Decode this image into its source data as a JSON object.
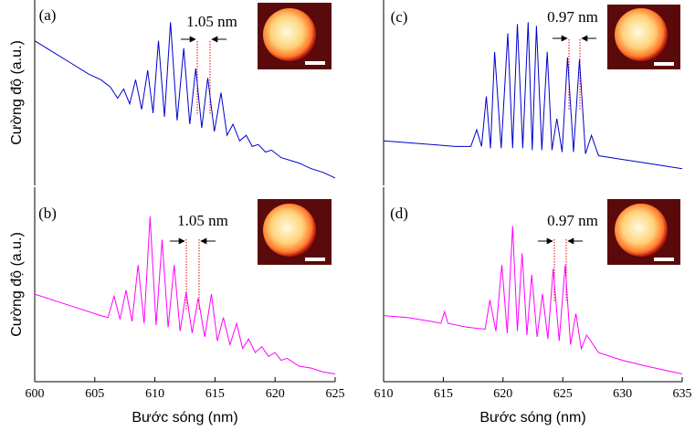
{
  "chart_data": [
    {
      "type": "line",
      "label": "(a)",
      "annotation": "1.05 nm",
      "y_label": "Cường độ (a.u.)",
      "color": "#0000cc",
      "xlim": [
        600,
        625
      ],
      "ylim": [
        0,
        1
      ],
      "x": [
        600,
        601.5,
        603,
        604.5,
        605.5,
        606.3,
        606.9,
        607.4,
        607.9,
        608.4,
        608.9,
        609.4,
        609.85,
        610.3,
        610.8,
        611.3,
        611.85,
        612.4,
        612.9,
        613.4,
        613.9,
        614.4,
        614.95,
        615.5,
        616.0,
        616.5,
        617.05,
        617.6,
        618.1,
        618.6,
        619.2,
        619.7,
        620.5,
        622,
        623,
        624,
        625
      ],
      "values": [
        0.78,
        0.72,
        0.66,
        0.6,
        0.57,
        0.53,
        0.47,
        0.52,
        0.44,
        0.57,
        0.41,
        0.62,
        0.39,
        0.78,
        0.37,
        0.88,
        0.35,
        0.74,
        0.33,
        0.63,
        0.31,
        0.58,
        0.29,
        0.5,
        0.27,
        0.33,
        0.24,
        0.27,
        0.21,
        0.22,
        0.18,
        0.19,
        0.15,
        0.12,
        0.09,
        0.07,
        0.04
      ]
    },
    {
      "type": "line",
      "label": "(b)",
      "annotation": "1.05 nm",
      "y_label": "Cường độ (a.u.)",
      "x_label": "Bước sóng (nm)",
      "color": "#ff00ff",
      "xlim": [
        600,
        625
      ],
      "ylim": [
        0,
        1
      ],
      "xticks": [
        600,
        605,
        610,
        615,
        620,
        625
      ],
      "x": [
        600,
        602,
        604,
        605.5,
        606.1,
        606.6,
        607.1,
        607.6,
        608.1,
        608.6,
        609.1,
        609.6,
        610.1,
        610.6,
        611.1,
        611.6,
        612.1,
        612.6,
        613.1,
        613.6,
        614.15,
        614.7,
        615.2,
        615.7,
        616.25,
        616.8,
        617.3,
        617.8,
        618.35,
        618.9,
        619.45,
        620,
        620.5,
        621,
        622,
        623,
        624,
        625
      ],
      "values": [
        0.45,
        0.41,
        0.37,
        0.34,
        0.33,
        0.44,
        0.32,
        0.47,
        0.31,
        0.6,
        0.3,
        0.85,
        0.29,
        0.73,
        0.28,
        0.6,
        0.26,
        0.46,
        0.25,
        0.43,
        0.23,
        0.45,
        0.21,
        0.33,
        0.19,
        0.3,
        0.17,
        0.22,
        0.15,
        0.18,
        0.13,
        0.15,
        0.11,
        0.12,
        0.08,
        0.07,
        0.05,
        0.04
      ]
    },
    {
      "type": "line",
      "label": "(c)",
      "annotation": "0.97 nm",
      "color": "#0000cc",
      "xlim": [
        610,
        635
      ],
      "ylim": [
        0,
        1
      ],
      "x": [
        610,
        612,
        614,
        616,
        617.3,
        617.8,
        618.2,
        618.6,
        618.95,
        619.3,
        619.85,
        620.4,
        620.8,
        621.2,
        621.65,
        622.1,
        622.45,
        622.8,
        623.25,
        623.7,
        624.1,
        624.5,
        624.95,
        625.4,
        625.9,
        626.4,
        626.9,
        627.4,
        628,
        630,
        632,
        635
      ],
      "values": [
        0.24,
        0.23,
        0.22,
        0.21,
        0.21,
        0.3,
        0.21,
        0.48,
        0.2,
        0.72,
        0.2,
        0.82,
        0.2,
        0.87,
        0.2,
        0.88,
        0.19,
        0.86,
        0.19,
        0.72,
        0.19,
        0.36,
        0.18,
        0.69,
        0.18,
        0.68,
        0.17,
        0.27,
        0.16,
        0.14,
        0.12,
        0.09
      ]
    },
    {
      "type": "line",
      "label": "(d)",
      "annotation": "0.97 nm",
      "x_label": "Bước sóng (nm)",
      "color": "#ff00ff",
      "xlim": [
        610,
        635
      ],
      "ylim": [
        0,
        1
      ],
      "xticks": [
        610,
        615,
        620,
        625,
        630,
        635
      ],
      "x": [
        610,
        612,
        614,
        614.8,
        615.1,
        615.4,
        617,
        618.5,
        618.9,
        619.4,
        619.9,
        620.35,
        620.8,
        621.2,
        621.6,
        622.0,
        622.4,
        622.85,
        623.3,
        623.75,
        624.2,
        624.7,
        625.2,
        625.65,
        626.1,
        626.55,
        627,
        628,
        630,
        632,
        635
      ],
      "values": [
        0.34,
        0.33,
        0.31,
        0.3,
        0.36,
        0.3,
        0.28,
        0.27,
        0.42,
        0.26,
        0.6,
        0.25,
        0.8,
        0.26,
        0.66,
        0.24,
        0.55,
        0.23,
        0.45,
        0.22,
        0.58,
        0.21,
        0.6,
        0.19,
        0.35,
        0.17,
        0.24,
        0.15,
        0.11,
        0.08,
        0.04
      ]
    }
  ]
}
